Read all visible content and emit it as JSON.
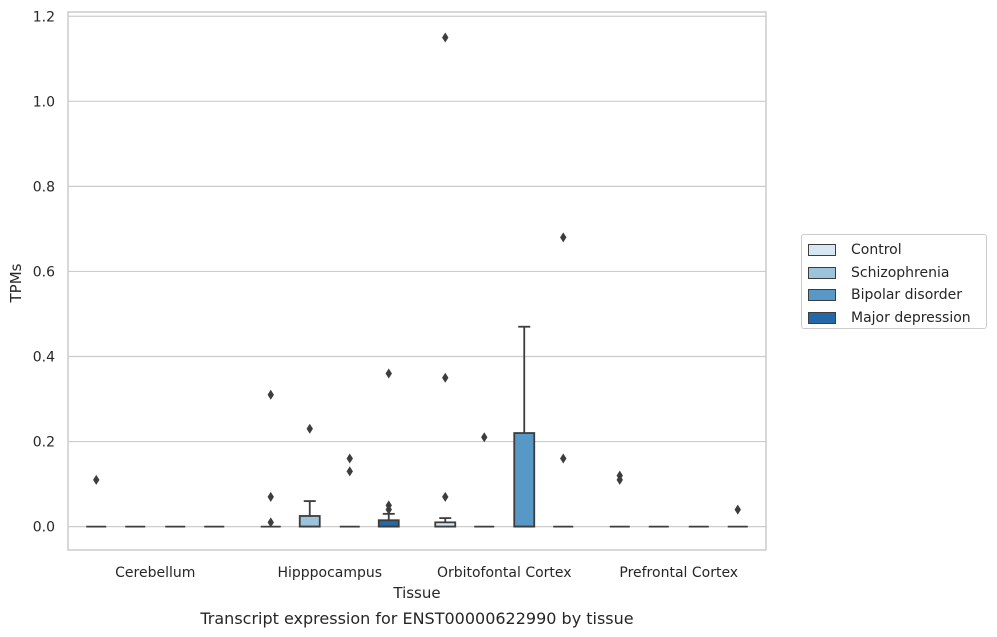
{
  "chart_data": {
    "type": "box",
    "title": "Transcript expression for ENST00000622990 by tissue",
    "xlabel": "Tissue",
    "ylabel": "TPMs",
    "ylim": [
      -0.055,
      1.21
    ],
    "yticks": [
      0.0,
      0.2,
      0.4,
      0.6,
      0.8,
      1.0,
      1.2
    ],
    "ytick_labels": [
      "0.0",
      "0.2",
      "0.4",
      "0.6",
      "0.8",
      "1.0",
      "1.2"
    ],
    "grid": "horizontal",
    "legend_position": "right",
    "categories": [
      "Cerebellum",
      "Hipppocampus",
      "Orbitofontal Cortex",
      "Prefrontal Cortex"
    ],
    "series": [
      {
        "name": "Control",
        "color": "#d7e6f3",
        "boxes": [
          {
            "q1": 0,
            "median": 0,
            "q3": 0,
            "whisker_low": 0,
            "whisker_high": 0,
            "outliers": [
              0.11
            ]
          },
          {
            "q1": 0,
            "median": 0,
            "q3": 0,
            "whisker_low": 0,
            "whisker_high": 0,
            "outliers": [
              0.31,
              0.07,
              0.01
            ]
          },
          {
            "q1": 0,
            "median": 0,
            "q3": 0.01,
            "whisker_low": 0,
            "whisker_high": 0.02,
            "outliers": [
              1.15,
              0.35,
              0.07
            ]
          },
          {
            "q1": 0,
            "median": 0,
            "q3": 0,
            "whisker_low": 0,
            "whisker_high": 0,
            "outliers": [
              0.12,
              0.11
            ]
          }
        ]
      },
      {
        "name": "Schizophrenia",
        "color": "#9bc3dc",
        "boxes": [
          {
            "q1": 0,
            "median": 0,
            "q3": 0,
            "whisker_low": 0,
            "whisker_high": 0,
            "outliers": []
          },
          {
            "q1": 0,
            "median": 0,
            "q3": 0.025,
            "whisker_low": 0,
            "whisker_high": 0.06,
            "outliers": [
              0.23
            ]
          },
          {
            "q1": 0,
            "median": 0,
            "q3": 0,
            "whisker_low": 0,
            "whisker_high": 0,
            "outliers": [
              0.21
            ]
          },
          {
            "q1": 0,
            "median": 0,
            "q3": 0,
            "whisker_low": 0,
            "whisker_high": 0,
            "outliers": []
          }
        ]
      },
      {
        "name": "Bipolar disorder",
        "color": "#5898c7",
        "boxes": [
          {
            "q1": 0,
            "median": 0,
            "q3": 0,
            "whisker_low": 0,
            "whisker_high": 0,
            "outliers": []
          },
          {
            "q1": 0,
            "median": 0,
            "q3": 0,
            "whisker_low": 0,
            "whisker_high": 0,
            "outliers": [
              0.16,
              0.13
            ]
          },
          {
            "q1": 0,
            "median": 0,
            "q3": 0.22,
            "whisker_low": 0,
            "whisker_high": 0.47,
            "outliers": []
          },
          {
            "q1": 0,
            "median": 0,
            "q3": 0,
            "whisker_low": 0,
            "whisker_high": 0,
            "outliers": []
          }
        ]
      },
      {
        "name": "Major depression",
        "color": "#2369a8",
        "boxes": [
          {
            "q1": 0,
            "median": 0,
            "q3": 0,
            "whisker_low": 0,
            "whisker_high": 0,
            "outliers": []
          },
          {
            "q1": 0,
            "median": 0,
            "q3": 0.015,
            "whisker_low": 0,
            "whisker_high": 0.03,
            "outliers": [
              0.36,
              0.05,
              0.04
            ]
          },
          {
            "q1": 0,
            "median": 0,
            "q3": 0,
            "whisker_low": 0,
            "whisker_high": 0,
            "outliers": [
              0.68,
              0.16
            ]
          },
          {
            "q1": 0,
            "median": 0,
            "q3": 0,
            "whisker_low": 0,
            "whisker_high": 0,
            "outliers": [
              0.04
            ]
          }
        ]
      }
    ]
  },
  "style": {
    "grid_color": "#cccccc",
    "frame_color": "#cccccc",
    "line_color": "#3d3d3d",
    "text_color": "#262626"
  }
}
